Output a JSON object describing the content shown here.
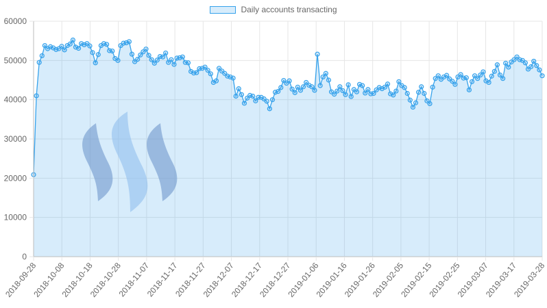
{
  "chart_data": {
    "type": "area",
    "series": [
      {
        "name": "Daily accounts transacting",
        "values": [
          20900,
          41000,
          49500,
          51200,
          53800,
          53000,
          53500,
          53200,
          52800,
          53000,
          53600,
          52700,
          53800,
          54200,
          55200,
          53400,
          53100,
          54300,
          54000,
          54300,
          53700,
          52000,
          49400,
          51500,
          53800,
          54300,
          54100,
          52500,
          52400,
          50500,
          50000,
          53800,
          54400,
          54500,
          54800,
          51600,
          49700,
          50300,
          51400,
          52200,
          52900,
          51300,
          50200,
          49300,
          50100,
          51000,
          50900,
          51900,
          49500,
          50200,
          49000,
          50600,
          50700,
          50900,
          49500,
          49400,
          47200,
          46800,
          46900,
          47900,
          48000,
          48300,
          47500,
          46600,
          44400,
          44800,
          48000,
          47300,
          46700,
          46000,
          45800,
          45500,
          40900,
          42800,
          41300,
          39100,
          40400,
          41100,
          40900,
          39700,
          40600,
          40600,
          40200,
          39600,
          37700,
          40000,
          41900,
          42100,
          43100,
          44900,
          44200,
          44800,
          42700,
          41800,
          43200,
          42400,
          43300,
          44400,
          43700,
          43300,
          42400,
          51600,
          43600,
          45800,
          46700,
          45000,
          42000,
          41400,
          42200,
          43300,
          42300,
          41300,
          43800,
          40800,
          42600,
          42000,
          43900,
          43600,
          41700,
          42600,
          41500,
          41600,
          42500,
          43100,
          42800,
          43200,
          44000,
          41500,
          41200,
          42200,
          44600,
          43600,
          43100,
          41600,
          39900,
          38100,
          39200,
          41900,
          43300,
          41600,
          39700,
          39000,
          43200,
          45400,
          46100,
          45200,
          45800,
          46200,
          45300,
          44700,
          43900,
          45800,
          46400,
          45500,
          45600,
          42500,
          44600,
          46100,
          45400,
          46300,
          47100,
          44800,
          44400,
          46000,
          47200,
          48900,
          46300,
          45400,
          49300,
          48300,
          49600,
          50200,
          50900,
          50200,
          50000,
          49400,
          47800,
          48400,
          49800,
          48700,
          47600,
          46100
        ]
      }
    ],
    "x_tick_labels": [
      "2018-09-28",
      "2018-10-08",
      "2018-10-18",
      "2018-10-28",
      "2018-11-07",
      "2018-11-17",
      "2018-11-27",
      "2018-12-07",
      "2018-12-17",
      "2018-12-27",
      "2019-01-06",
      "2019-01-16",
      "2019-01-26",
      "2019-02-05",
      "2019-02-15",
      "2019-02-25",
      "2019-03-07",
      "2019-03-17",
      "2019-03-28"
    ],
    "y_tick_labels": [
      "0",
      "10000",
      "20000",
      "30000",
      "40000",
      "50000",
      "60000"
    ],
    "ylim": [
      0,
      60000
    ],
    "grid": true,
    "legend_position": "top",
    "colors": {
      "line": "#36a2eb",
      "fill": "#36a2eb",
      "grid": "#e6e6e6",
      "tick_text": "#666666",
      "logo": "#7f97c7",
      "logo_light": "#a9c9f1"
    },
    "watermark_icon": "steem-logo-icon"
  }
}
